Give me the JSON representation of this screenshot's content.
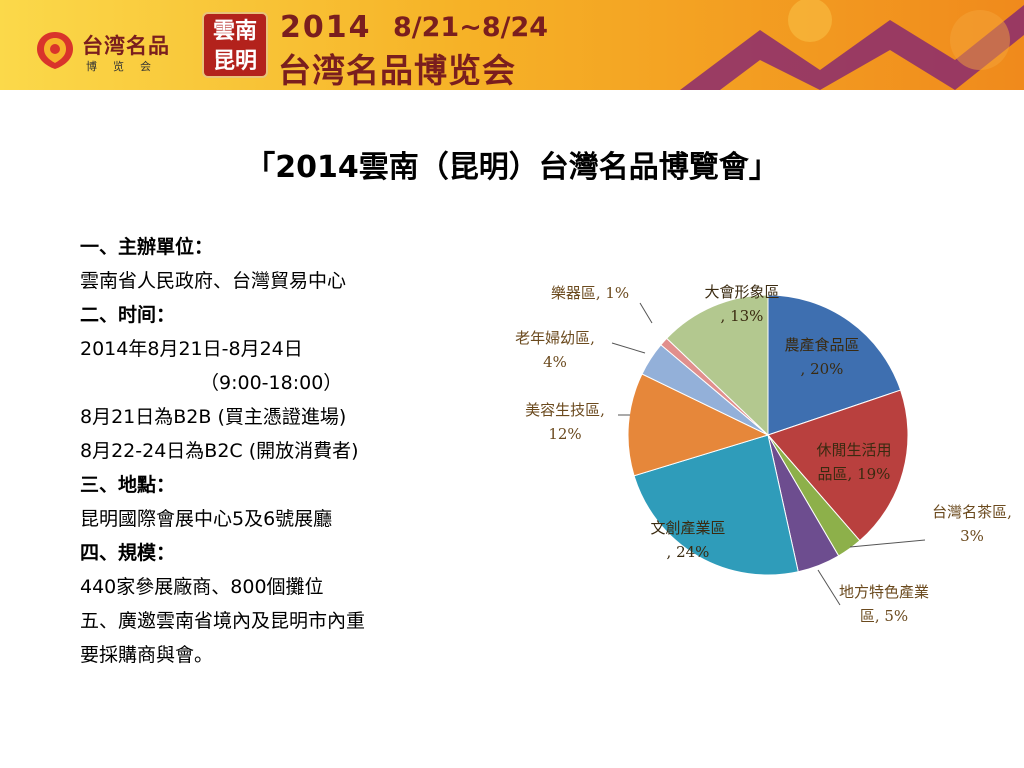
{
  "banner": {
    "logo_name": "台湾名品",
    "logo_sub": "博览会",
    "badge_line1": "雲南",
    "badge_line2": "昆明",
    "year": "2014",
    "dates": "8/21~8/24",
    "fair_name": "台湾名品博览会",
    "colors": {
      "bg_left": "#fbd94a",
      "bg_right": "#f08a1c",
      "text": "#7a1e1e",
      "badge": "#b3221c",
      "stripe": "#8a2a6e"
    }
  },
  "slide_title": "「2014雲南（昆明）台灣名品博覽會」",
  "info": {
    "lines": [
      "一、主辦單位：",
      "雲南省人民政府、台灣貿易中心",
      "二、时间：",
      "2014年8月21日-8月24日",
      "（9:00-18:00）",
      "8月21日為B2B  (買主憑證進場)",
      "8月22-24日為B2C (開放消費者)",
      "三、地點：",
      "昆明國際會展中心5及6號展廳",
      "四、規模：",
      "440家參展廠商、800個攤位",
      "五、廣邀雲南省境內及昆明市內重",
      "要採購商與會。"
    ]
  },
  "chart_data": {
    "type": "pie",
    "slices": [
      {
        "label": "農產食品區,",
        "value": 20,
        "value_label": "20%",
        "color": "#3e6fb0"
      },
      {
        "label": "休閒生活用品區,",
        "value": 19,
        "value_label": "19%",
        "color": "#b9403e"
      },
      {
        "label": "台灣名茶區,",
        "value": 3,
        "value_label": "3%",
        "color": "#8db04a"
      },
      {
        "label": "地方特色產業區,",
        "value": 5,
        "value_label": "5%",
        "color": "#6d4d8f"
      },
      {
        "label": "文創產業區,",
        "value": 24,
        "value_label": "24%",
        "color": "#2f9cba"
      },
      {
        "label": "美容生技區,",
        "value": 12,
        "value_label": "12%",
        "color": "#e6873a"
      },
      {
        "label": "老年婦幼區,",
        "value": 4,
        "value_label": "4%",
        "color": "#93b0d9"
      },
      {
        "label": "樂器區,",
        "value": 1,
        "value_label": "1%",
        "color": "#e18f8d"
      },
      {
        "label": "大會形象區,",
        "value": 13,
        "value_label": "13%",
        "color": "#b3c88f"
      }
    ],
    "label_color": "#6b4a1e"
  }
}
